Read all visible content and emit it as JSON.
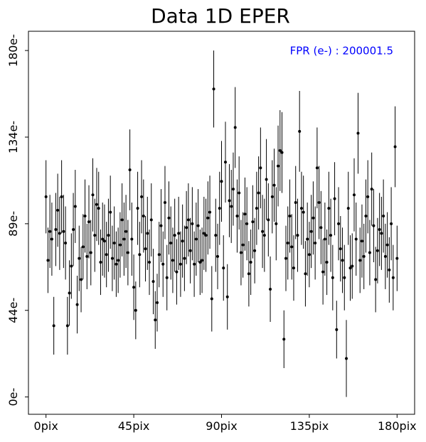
{
  "chart_data": {
    "type": "errorbar",
    "title": "Data 1D EPER",
    "annotation": "FPR (e-) : 200001.5",
    "annotation_color": "#0000ff",
    "color": "#000000",
    "x": [
      0,
      1,
      2,
      3,
      4,
      5,
      6,
      7,
      8,
      9,
      10,
      11,
      12,
      13,
      14,
      15,
      16,
      17,
      18,
      19,
      20,
      21,
      22,
      23,
      24,
      25,
      26,
      27,
      28,
      29,
      30,
      31,
      32,
      33,
      34,
      35,
      36,
      37,
      38,
      39,
      40,
      41,
      42,
      43,
      44,
      45,
      46,
      47,
      48,
      49,
      50,
      51,
      52,
      53,
      54,
      55,
      56,
      57,
      58,
      59,
      60,
      61,
      62,
      63,
      64,
      65,
      66,
      67,
      68,
      69,
      70,
      71,
      72,
      73,
      74,
      75,
      76,
      77,
      78,
      79,
      80,
      81,
      82,
      83,
      84,
      85,
      86,
      87,
      88,
      89,
      90,
      91,
      92,
      93,
      94,
      95,
      96,
      97,
      98,
      99,
      100,
      101,
      102,
      103,
      104,
      105,
      106,
      107,
      108,
      109,
      110,
      111,
      112,
      113,
      114,
      115,
      116,
      117,
      118,
      119,
      120,
      121,
      122,
      123,
      124,
      125,
      126,
      127,
      128,
      129,
      130,
      131,
      132,
      133,
      134,
      135,
      136,
      137,
      138,
      139,
      140,
      141,
      142,
      143,
      144,
      145,
      146,
      147,
      148,
      149,
      150,
      151,
      152,
      153,
      154,
      155,
      156,
      157,
      158,
      159,
      160,
      161,
      162,
      163,
      164,
      165,
      166,
      167,
      168,
      169,
      170,
      171,
      172,
      173,
      174,
      175,
      176,
      177,
      178,
      179,
      180
    ],
    "values": [
      104,
      71,
      86,
      82,
      37,
      87,
      97,
      85,
      104,
      86,
      80,
      37,
      54,
      68,
      87,
      99,
      48,
      72,
      61,
      78,
      94,
      73,
      91,
      75,
      105,
      84,
      100,
      98,
      70,
      82,
      81,
      74,
      84,
      96,
      72,
      80,
      69,
      71,
      79,
      92,
      82,
      86,
      75,
      118,
      82,
      57,
      45,
      98,
      74,
      104,
      94,
      77,
      85,
      70,
      92,
      60,
      40,
      49,
      74,
      89,
      69,
      101,
      62,
      93,
      80,
      71,
      84,
      65,
      85,
      69,
      81,
      72,
      88,
      92,
      76,
      90,
      69,
      82,
      89,
      70,
      71,
      85,
      84,
      93,
      96,
      51,
      160,
      84,
      73,
      98,
      112,
      67,
      122,
      52,
      102,
      99,
      108,
      140,
      94,
      106,
      75,
      79,
      95,
      90,
      64,
      70,
      91,
      76,
      98,
      106,
      119,
      86,
      84,
      113,
      92,
      56,
      104,
      110,
      90,
      120,
      128,
      127,
      30,
      72,
      80,
      94,
      78,
      67,
      101,
      84,
      138,
      98,
      96,
      64,
      82,
      74,
      86,
      93,
      80,
      119,
      101,
      88,
      65,
      82,
      70,
      98,
      84,
      62,
      103,
      35,
      90,
      77,
      71,
      62,
      20,
      98,
      67,
      68,
      105,
      82,
      137,
      71,
      81,
      73,
      94,
      104,
      75,
      108,
      89,
      61,
      76,
      87,
      85,
      94,
      73,
      79,
      66,
      90,
      62,
      130,
      72
    ],
    "errors": [
      19,
      17,
      19,
      19,
      15,
      19,
      19,
      19,
      19,
      19,
      19,
      15,
      17,
      17,
      19,
      19,
      15,
      17,
      17,
      17,
      19,
      17,
      19,
      17,
      19,
      19,
      19,
      19,
      17,
      19,
      19,
      17,
      19,
      19,
      17,
      19,
      17,
      17,
      17,
      19,
      19,
      19,
      17,
      21,
      19,
      17,
      15,
      19,
      17,
      19,
      19,
      17,
      19,
      17,
      19,
      17,
      15,
      15,
      17,
      19,
      17,
      19,
      17,
      19,
      19,
      17,
      19,
      17,
      19,
      17,
      19,
      17,
      19,
      19,
      17,
      19,
      17,
      19,
      19,
      17,
      17,
      19,
      19,
      19,
      19,
      17,
      20,
      19,
      17,
      19,
      21,
      17,
      21,
      17,
      19,
      19,
      19,
      21,
      19,
      19,
      17,
      17,
      19,
      19,
      17,
      17,
      19,
      17,
      19,
      19,
      21,
      19,
      19,
      21,
      19,
      17,
      19,
      19,
      19,
      21,
      21,
      21,
      15,
      17,
      19,
      19,
      17,
      17,
      19,
      19,
      21,
      19,
      19,
      17,
      19,
      17,
      19,
      19,
      19,
      21,
      19,
      19,
      17,
      19,
      17,
      19,
      19,
      17,
      19,
      15,
      19,
      17,
      17,
      17,
      20,
      19,
      17,
      17,
      19,
      19,
      21,
      17,
      19,
      17,
      19,
      19,
      17,
      19,
      19,
      17,
      17,
      19,
      19,
      19,
      17,
      17,
      17,
      19,
      17,
      21,
      17
    ],
    "xlim": [
      -9,
      189
    ],
    "ylim": [
      -9,
      190
    ],
    "xticks": [
      {
        "value": 0,
        "label": "0pix"
      },
      {
        "value": 45,
        "label": "45pix"
      },
      {
        "value": 90,
        "label": "90pix"
      },
      {
        "value": 135,
        "label": "135pix"
      },
      {
        "value": 180,
        "label": "180pix"
      }
    ],
    "yticks": [
      {
        "value": 0,
        "label": "0e-"
      },
      {
        "value": 45,
        "label": "44e-"
      },
      {
        "value": 90,
        "label": "89e-"
      },
      {
        "value": 135,
        "label": "134e-"
      },
      {
        "value": 180,
        "label": "180e-"
      }
    ]
  }
}
